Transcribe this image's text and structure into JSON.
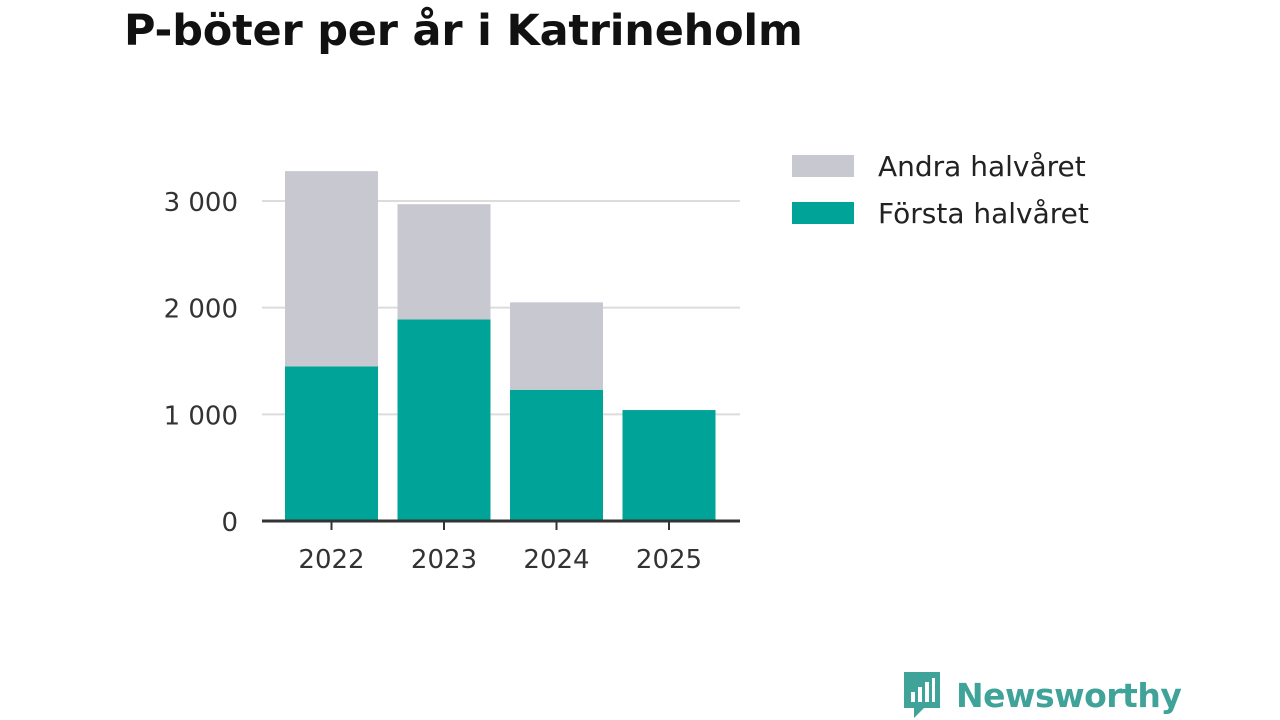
{
  "chart_data": {
    "type": "bar",
    "stacked": true,
    "title": "P-böter per år i Katrineholm",
    "categories": [
      "2022",
      "2023",
      "2024",
      "2025"
    ],
    "series": [
      {
        "name": "Första halvåret",
        "values": [
          1450,
          1890,
          1230,
          1040
        ],
        "color": "#00a398"
      },
      {
        "name": "Andra halvåret",
        "values": [
          1830,
          1080,
          820,
          0
        ],
        "color": "#c8c8d0"
      }
    ],
    "ylim": [
      0,
      3000
    ],
    "yticks": [
      0,
      1000,
      2000,
      3000
    ],
    "ytick_labels": [
      "0",
      "1 000",
      "2 000",
      "3 000"
    ],
    "legend": {
      "position": "top-right",
      "order": [
        "Andra halvåret",
        "Första halvåret"
      ]
    },
    "grid": true
  },
  "brand": {
    "name": "Newsworthy",
    "color": "#3fa39a"
  }
}
